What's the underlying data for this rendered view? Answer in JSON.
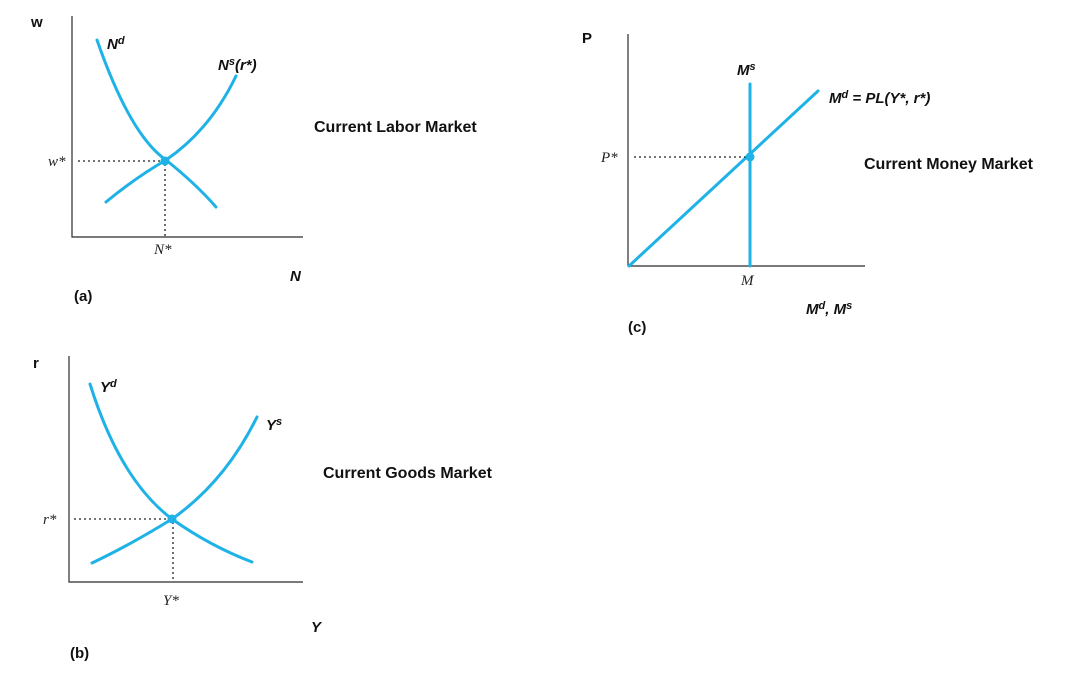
{
  "labor": {
    "panel_label": "(a)",
    "title": "Current Labor Market",
    "y_axis": "w",
    "x_axis": "N",
    "demand": "N",
    "demand_sup": "d",
    "supply": "N",
    "supply_sup": "s",
    "supply_arg": "(r*)",
    "eq_y": "w*",
    "eq_x": "N*"
  },
  "goods": {
    "panel_label": "(b)",
    "title": "Current Goods Market",
    "y_axis": "r",
    "x_axis": "Y",
    "demand": "Y",
    "demand_sup": "d",
    "supply": "Y",
    "supply_sup": "s",
    "eq_y": "r*",
    "eq_x": "Y*"
  },
  "money": {
    "panel_label": "(c)",
    "title": "Current Money Market",
    "y_axis": "P",
    "x_axis_1": "M",
    "x_axis_1_sup": "d",
    "x_axis_sep": ", ",
    "x_axis_2": "M",
    "x_axis_2_sup": "s",
    "supply": "M",
    "supply_sup": "s",
    "demand": "M",
    "demand_sup": "d",
    "demand_eq": " = PL(Y*, r*)",
    "eq_y": "P*",
    "eq_x": "M"
  },
  "colors": {
    "curve": "#1fb2e6",
    "axis": "#2b2b2b"
  }
}
